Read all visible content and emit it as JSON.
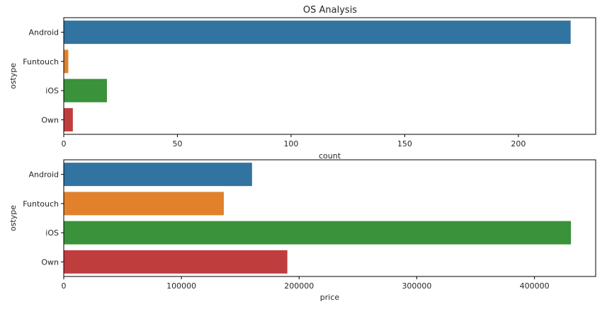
{
  "figure": {
    "title": "OS Analysis"
  },
  "chart_data": [
    {
      "type": "bar",
      "orientation": "horizontal",
      "categories": [
        "Android",
        "Funtouch",
        "iOS",
        "Own"
      ],
      "values": [
        223,
        2,
        19,
        4
      ],
      "colors": [
        "#3274a1",
        "#e1812c",
        "#3a923a",
        "#c03d3e"
      ],
      "xlabel": "count",
      "ylabel": "ostype",
      "xlim": [
        0,
        234
      ],
      "xticks": [
        0,
        50,
        100,
        150,
        200
      ],
      "grid": false
    },
    {
      "type": "bar",
      "orientation": "horizontal",
      "categories": [
        "Android",
        "Funtouch",
        "iOS",
        "Own"
      ],
      "values": [
        160000,
        136000,
        431000,
        190000
      ],
      "colors": [
        "#3274a1",
        "#e1812c",
        "#3a923a",
        "#c03d3e"
      ],
      "xlabel": "price",
      "ylabel": "ostype",
      "xlim": [
        0,
        452000
      ],
      "xticks": [
        0,
        100000,
        200000,
        300000,
        400000
      ],
      "grid": false
    }
  ]
}
